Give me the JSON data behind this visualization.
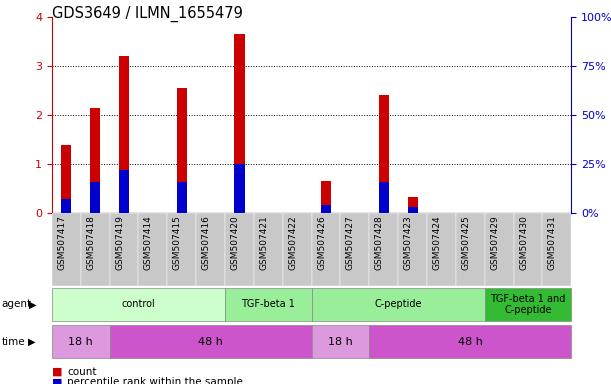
{
  "title": "GDS3649 / ILMN_1655479",
  "samples": [
    "GSM507417",
    "GSM507418",
    "GSM507419",
    "GSM507414",
    "GSM507415",
    "GSM507416",
    "GSM507420",
    "GSM507421",
    "GSM507422",
    "GSM507426",
    "GSM507427",
    "GSM507428",
    "GSM507423",
    "GSM507424",
    "GSM507425",
    "GSM507429",
    "GSM507430",
    "GSM507431"
  ],
  "count_values": [
    1.4,
    2.15,
    3.2,
    0,
    2.55,
    0,
    3.65,
    0,
    0,
    0.65,
    0,
    2.42,
    0.32,
    0,
    0,
    0,
    0,
    0
  ],
  "percentile_values_pct": [
    7,
    16,
    22,
    0,
    16,
    0,
    25,
    0,
    0,
    4,
    0,
    16,
    3,
    0,
    0,
    0,
    0,
    0
  ],
  "ylim_left": [
    0,
    4
  ],
  "ylim_right": [
    0,
    100
  ],
  "yticks_left": [
    0,
    1,
    2,
    3,
    4
  ],
  "yticks_right": [
    0,
    25,
    50,
    75,
    100
  ],
  "yticklabels_right": [
    "0%",
    "25%",
    "50%",
    "75%",
    "100%"
  ],
  "left_tick_color": "#cc0000",
  "bar_color_red": "#cc0000",
  "bar_color_blue": "#0000cc",
  "agent_spans": [
    {
      "label": "control",
      "start": 0,
      "end": 5,
      "color": "#ccffcc"
    },
    {
      "label": "TGF-beta 1",
      "start": 6,
      "end": 8,
      "color": "#99ee99"
    },
    {
      "label": "C-peptide",
      "start": 9,
      "end": 14,
      "color": "#99ee99"
    },
    {
      "label": "TGF-beta 1 and\nC-peptide",
      "start": 15,
      "end": 17,
      "color": "#33bb33"
    }
  ],
  "time_spans": [
    {
      "label": "18 h",
      "start": 0,
      "end": 1,
      "color": "#dd99dd"
    },
    {
      "label": "48 h",
      "start": 2,
      "end": 8,
      "color": "#cc55cc"
    },
    {
      "label": "18 h",
      "start": 9,
      "end": 10,
      "color": "#dd99dd"
    },
    {
      "label": "48 h",
      "start": 11,
      "end": 17,
      "color": "#cc55cc"
    }
  ],
  "legend_items": [
    {
      "label": "count",
      "color": "#cc0000"
    },
    {
      "label": "percentile rank within the sample",
      "color": "#0000cc"
    }
  ],
  "gridline_y": [
    1,
    2,
    3
  ]
}
